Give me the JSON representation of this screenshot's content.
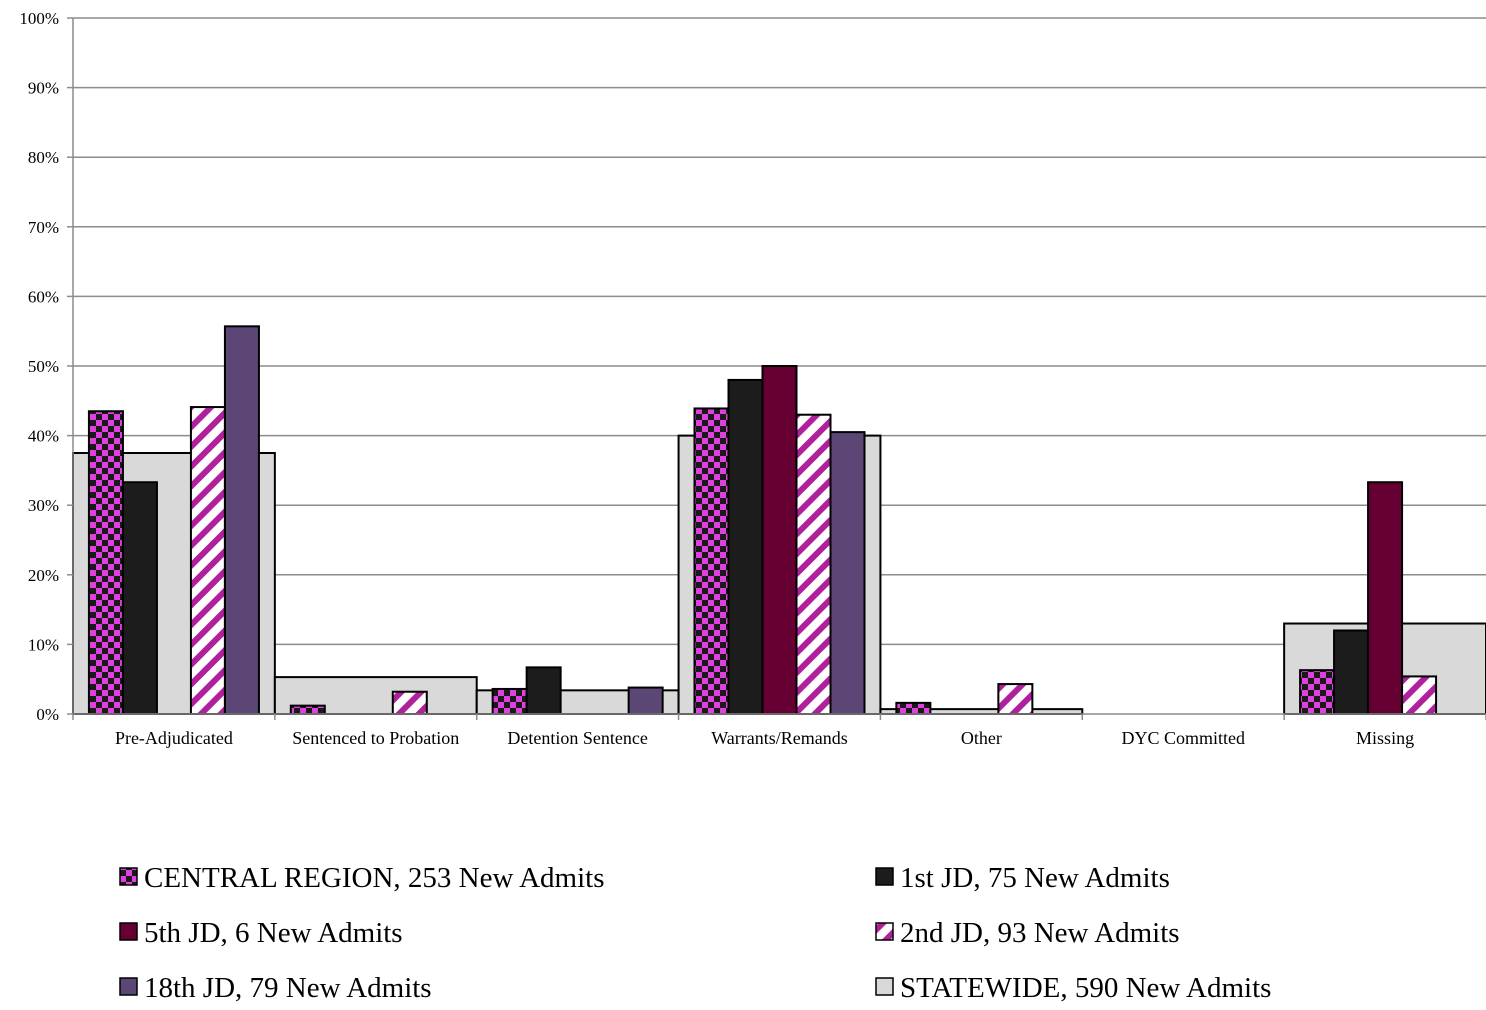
{
  "chart_data": {
    "type": "bar",
    "title": "",
    "xlabel": "",
    "ylabel": "",
    "ylim": [
      0,
      100
    ],
    "y_ticks": [
      "0%",
      "10%",
      "20%",
      "30%",
      "40%",
      "50%",
      "60%",
      "70%",
      "80%",
      "90%",
      "100%"
    ],
    "grid": true,
    "legend_position": "bottom",
    "categories": [
      "Pre-Adjudicated",
      "Sentenced to Probation",
      "Detention Sentence",
      "Warrants/Remands",
      "Other",
      "DYC Committed",
      "Missing"
    ],
    "background_series": {
      "name": "STATEWIDE, 590 New Admits",
      "color": "#d9d9d9",
      "values": [
        37.5,
        5.3,
        3.4,
        40.0,
        0.7,
        0.0,
        13.0
      ]
    },
    "series": [
      {
        "name": "CENTRAL REGION, 253 New Admits",
        "pattern": "checker",
        "color": "#e040e0",
        "values": [
          43.5,
          1.2,
          3.6,
          43.9,
          1.6,
          0.0,
          6.3
        ]
      },
      {
        "name": "1st JD, 75 New Admits",
        "pattern": "solid",
        "color": "#1c1c1c",
        "values": [
          33.3,
          0.0,
          6.7,
          48.0,
          0.0,
          0.0,
          12.0
        ]
      },
      {
        "name": "5th JD, 6 New Admits",
        "pattern": "solid",
        "color": "#660033",
        "values": [
          0.0,
          0.0,
          0.0,
          50.0,
          0.0,
          0.0,
          33.3
        ]
      },
      {
        "name": "2nd JD, 93 New Admits",
        "pattern": "stripe",
        "color": "#b0209c",
        "values": [
          44.1,
          3.2,
          0.0,
          43.0,
          4.3,
          0.0,
          5.4
        ]
      },
      {
        "name": "18th JD, 79 New Admits",
        "pattern": "solid",
        "color": "#5b4676",
        "values": [
          55.7,
          0.0,
          3.8,
          40.5,
          0.0,
          0.0,
          0.0
        ]
      }
    ]
  }
}
